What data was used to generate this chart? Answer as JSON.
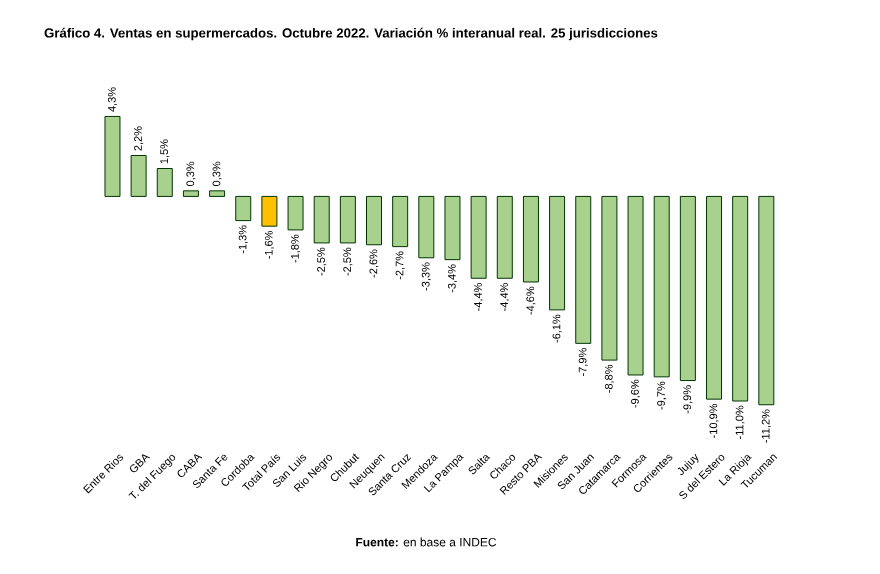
{
  "chart_data": {
    "type": "bar",
    "title": "Gráfico 4. Ventas en supermercados. Octubre 2022. Variación % interanual real. 25 jurisdicciones",
    "categories": [
      "Entre Rios",
      "GBA",
      "T. del Fuego",
      "CABA",
      "Santa Fe",
      "Cordoba",
      "Total País",
      "San Luis",
      "Rio Negro",
      "Chubut",
      "Neuquen",
      "Santa Cruz",
      "Mendoza",
      "La Pampa",
      "Salta",
      "Chaco",
      "Resto PBA",
      "Misiones",
      "San Juan",
      "Catamarca",
      "Formosa",
      "Corrientes",
      "Jujuy",
      "S del Estero",
      "La Rioja",
      "Tucuman"
    ],
    "values": [
      4.3,
      2.2,
      1.5,
      0.3,
      0.3,
      -1.3,
      -1.6,
      -1.8,
      -2.5,
      -2.5,
      -2.6,
      -2.7,
      -3.3,
      -3.4,
      -4.4,
      -4.4,
      -4.6,
      -6.1,
      -7.9,
      -8.8,
      -9.6,
      -9.7,
      -9.9,
      -10.9,
      -11.0,
      -11.2
    ],
    "value_labels": [
      "4,3%",
      "2,2%",
      "1,5%",
      "0,3%",
      "0,3%",
      "-1,3%",
      "-1,6%",
      "-1,8%",
      "-2,5%",
      "-2,5%",
      "-2,6%",
      "-2,7%",
      "-3,3%",
      "-3,4%",
      "-4,4%",
      "-4,4%",
      "-4,6%",
      "-6,1%",
      "-7,9%",
      "-8,8%",
      "-9,6%",
      "-9,7%",
      "-9,9%",
      "-10,9%",
      "-11,0%",
      "-11,2%"
    ],
    "colors": [
      "#a9d18e",
      "#a9d18e",
      "#a9d18e",
      "#a9d18e",
      "#a9d18e",
      "#a9d18e",
      "#ffc000",
      "#a9d18e",
      "#a9d18e",
      "#a9d18e",
      "#a9d18e",
      "#a9d18e",
      "#a9d18e",
      "#a9d18e",
      "#a9d18e",
      "#a9d18e",
      "#a9d18e",
      "#a9d18e",
      "#a9d18e",
      "#a9d18e",
      "#a9d18e",
      "#a9d18e",
      "#a9d18e",
      "#a9d18e",
      "#a9d18e",
      "#a9d18e"
    ],
    "annotations": [
      "**Fuente:** en base a INDEC"
    ]
  }
}
